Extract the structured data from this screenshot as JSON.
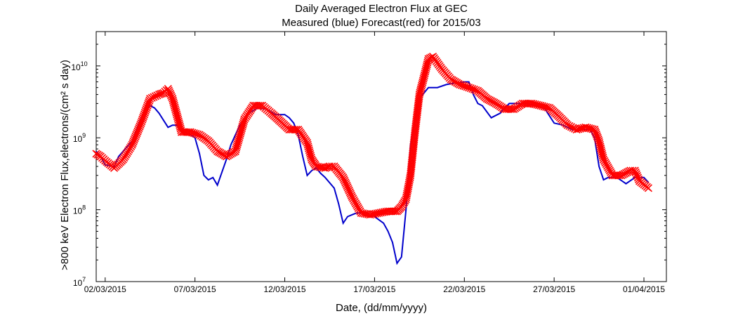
{
  "chart_data": {
    "type": "line",
    "title": "Daily Averaged Electron Flux at GEC",
    "subtitle": "Measured (blue) Forecast(red) for 2015/03",
    "xlabel": "Date, (dd/mm/yyyy)",
    "ylabel": ">800 keV Electron Flux,electrons/(cm² s day)",
    "y_scale": "log",
    "ylim": [
      10000000.0,
      30000000000.0
    ],
    "xlim": [
      "2015-03-01T12:00",
      "2015-04-02T06:00"
    ],
    "grid": false,
    "x_tick_labels": [
      "02/03/2015",
      "07/03/2015",
      "12/03/2015",
      "17/03/2015",
      "22/03/2015",
      "27/03/2015",
      "01/04/2015"
    ],
    "y_tick_labels": [
      {
        "base": "10",
        "exp": "7"
      },
      {
        "base": "10",
        "exp": "8"
      },
      {
        "base": "10",
        "exp": "9"
      },
      {
        "base": "10",
        "exp": "10"
      }
    ],
    "colors": {
      "measured": "#0000cc",
      "forecast": "#ff0000"
    },
    "series": [
      {
        "key": "measured",
        "style": "line",
        "points": [
          [
            "2015-03-01T12:00",
            650000000.0
          ],
          [
            "2015-03-01T18:00",
            550000000.0
          ],
          [
            "2015-03-02T00:00",
            420000000.0
          ],
          [
            "2015-03-02T12:00",
            400000000.0
          ],
          [
            "2015-03-02T18:00",
            550000000.0
          ],
          [
            "2015-03-03T00:00",
            650000000.0
          ],
          [
            "2015-03-03T12:00",
            900000000.0
          ],
          [
            "2015-03-03T18:00",
            1300000000.0
          ],
          [
            "2015-03-04T00:00",
            1900000000.0
          ],
          [
            "2015-03-04T12:00",
            2800000000.0
          ],
          [
            "2015-03-04T18:00",
            2600000000.0
          ],
          [
            "2015-03-05T00:00",
            2200000000.0
          ],
          [
            "2015-03-05T12:00",
            1400000000.0
          ],
          [
            "2015-03-05T18:00",
            1500000000.0
          ],
          [
            "2015-03-06T00:00",
            1500000000.0
          ],
          [
            "2015-03-06T06:00",
            1200000000.0
          ],
          [
            "2015-03-06T12:00",
            1200000000.0
          ],
          [
            "2015-03-06T18:00",
            1100000000.0
          ],
          [
            "2015-03-07T00:00",
            1000000000.0
          ],
          [
            "2015-03-07T06:00",
            600000000.0
          ],
          [
            "2015-03-07T12:00",
            300000000.0
          ],
          [
            "2015-03-07T18:00",
            260000000.0
          ],
          [
            "2015-03-08T00:00",
            280000000.0
          ],
          [
            "2015-03-08T06:00",
            220000000.0
          ],
          [
            "2015-03-08T18:00",
            500000000.0
          ],
          [
            "2015-03-09T00:00",
            800000000.0
          ],
          [
            "2015-03-09T12:00",
            1500000000.0
          ],
          [
            "2015-03-10T00:00",
            2200000000.0
          ],
          [
            "2015-03-10T12:00",
            2600000000.0
          ],
          [
            "2015-03-11T00:00",
            2500000000.0
          ],
          [
            "2015-03-11T12:00",
            2100000000.0
          ],
          [
            "2015-03-12T00:00",
            2100000000.0
          ],
          [
            "2015-03-12T06:00",
            1900000000.0
          ],
          [
            "2015-03-12T12:00",
            1600000000.0
          ],
          [
            "2015-03-12T18:00",
            1100000000.0
          ],
          [
            "2015-03-13T00:00",
            550000000.0
          ],
          [
            "2015-03-13T06:00",
            300000000.0
          ],
          [
            "2015-03-13T12:00",
            350000000.0
          ],
          [
            "2015-03-13T18:00",
            380000000.0
          ],
          [
            "2015-03-14T00:00",
            320000000.0
          ],
          [
            "2015-03-14T06:00",
            280000000.0
          ],
          [
            "2015-03-14T18:00",
            200000000.0
          ],
          [
            "2015-03-15T00:00",
            120000000.0
          ],
          [
            "2015-03-15T06:00",
            65000000.0
          ],
          [
            "2015-03-15T12:00",
            80000000.0
          ],
          [
            "2015-03-15T18:00",
            85000000.0
          ],
          [
            "2015-03-16T00:00",
            90000000.0
          ],
          [
            "2015-03-16T12:00",
            90000000.0
          ],
          [
            "2015-03-17T00:00",
            80000000.0
          ],
          [
            "2015-03-17T12:00",
            65000000.0
          ],
          [
            "2015-03-17T18:00",
            50000000.0
          ],
          [
            "2015-03-18T00:00",
            35000000.0
          ],
          [
            "2015-03-18T06:00",
            18000000.0
          ],
          [
            "2015-03-18T12:00",
            22000000.0
          ],
          [
            "2015-03-18T18:00",
            100000000.0
          ],
          [
            "2015-03-19T00:00",
            800000000.0
          ],
          [
            "2015-03-19T06:00",
            1800000000.0
          ],
          [
            "2015-03-19T12:00",
            3500000000.0
          ],
          [
            "2015-03-20T00:00",
            5000000000.0
          ],
          [
            "2015-03-20T12:00",
            5000000000.0
          ],
          [
            "2015-03-21T00:00",
            5500000000.0
          ],
          [
            "2015-03-21T12:00",
            5800000000.0
          ],
          [
            "2015-03-22T00:00",
            6000000000.0
          ],
          [
            "2015-03-22T06:00",
            6000000000.0
          ],
          [
            "2015-03-22T12:00",
            4000000000.0
          ],
          [
            "2015-03-22T18:00",
            3000000000.0
          ],
          [
            "2015-03-23T00:00",
            2800000000.0
          ],
          [
            "2015-03-23T12:00",
            1900000000.0
          ],
          [
            "2015-03-24T00:00",
            2200000000.0
          ],
          [
            "2015-03-24T12:00",
            3000000000.0
          ],
          [
            "2015-03-25T00:00",
            3000000000.0
          ],
          [
            "2015-03-25T12:00",
            3000000000.0
          ],
          [
            "2015-03-26T00:00",
            2800000000.0
          ],
          [
            "2015-03-26T12:00",
            2500000000.0
          ],
          [
            "2015-03-26T18:00",
            2000000000.0
          ],
          [
            "2015-03-27T00:00",
            1600000000.0
          ],
          [
            "2015-03-27T12:00",
            1500000000.0
          ],
          [
            "2015-03-28T00:00",
            1300000000.0
          ],
          [
            "2015-03-28T12:00",
            1300000000.0
          ],
          [
            "2015-03-29T00:00",
            1300000000.0
          ],
          [
            "2015-03-29T06:00",
            1000000000.0
          ],
          [
            "2015-03-29T12:00",
            400000000.0
          ],
          [
            "2015-03-29T18:00",
            260000000.0
          ],
          [
            "2015-03-30T00:00",
            280000000.0
          ],
          [
            "2015-03-30T12:00",
            280000000.0
          ],
          [
            "2015-03-31T00:00",
            230000000.0
          ],
          [
            "2015-03-31T12:00",
            280000000.0
          ],
          [
            "2015-04-01T00:00",
            280000000.0
          ],
          [
            "2015-04-01T06:00",
            240000000.0
          ]
        ]
      },
      {
        "key": "forecast",
        "style": "x-markers",
        "points": [
          [
            "2015-03-01T12:00",
            600000000.0
          ],
          [
            "2015-03-01T18:00",
            550000000.0
          ],
          [
            "2015-03-02T00:00",
            480000000.0
          ],
          [
            "2015-03-02T12:00",
            380000000.0
          ],
          [
            "2015-03-03T00:00",
            500000000.0
          ],
          [
            "2015-03-03T12:00",
            800000000.0
          ],
          [
            "2015-03-04T00:00",
            1600000000.0
          ],
          [
            "2015-03-04T12:00",
            3500000000.0
          ],
          [
            "2015-03-05T00:00",
            4000000000.0
          ],
          [
            "2015-03-05T06:00",
            4200000000.0
          ],
          [
            "2015-03-05T12:00",
            4800000000.0
          ],
          [
            "2015-03-05T18:00",
            3500000000.0
          ],
          [
            "2015-03-06T06:00",
            1200000000.0
          ],
          [
            "2015-03-06T18:00",
            1200000000.0
          ],
          [
            "2015-03-07T06:00",
            1100000000.0
          ],
          [
            "2015-03-07T18:00",
            900000000.0
          ],
          [
            "2015-03-08T06:00",
            650000000.0
          ],
          [
            "2015-03-08T18:00",
            550000000.0
          ],
          [
            "2015-03-09T06:00",
            650000000.0
          ],
          [
            "2015-03-09T18:00",
            1800000000.0
          ],
          [
            "2015-03-10T06:00",
            2800000000.0
          ],
          [
            "2015-03-10T18:00",
            2800000000.0
          ],
          [
            "2015-03-11T06:00",
            2200000000.0
          ],
          [
            "2015-03-11T18:00",
            1700000000.0
          ],
          [
            "2015-03-12T06:00",
            1300000000.0
          ],
          [
            "2015-03-12T18:00",
            1300000000.0
          ],
          [
            "2015-03-13T06:00",
            850000000.0
          ],
          [
            "2015-03-13T12:00",
            500000000.0
          ],
          [
            "2015-03-13T18:00",
            400000000.0
          ],
          [
            "2015-03-14T06:00",
            380000000.0
          ],
          [
            "2015-03-14T12:00",
            400000000.0
          ],
          [
            "2015-03-14T18:00",
            400000000.0
          ],
          [
            "2015-03-15T06:00",
            280000000.0
          ],
          [
            "2015-03-15T18:00",
            150000000.0
          ],
          [
            "2015-03-16T06:00",
            90000000.0
          ],
          [
            "2015-03-16T18:00",
            85000000.0
          ],
          [
            "2015-03-17T06:00",
            90000000.0
          ],
          [
            "2015-03-17T18:00",
            95000000.0
          ],
          [
            "2015-03-18T06:00",
            95000000.0
          ],
          [
            "2015-03-18T12:00",
            110000000.0
          ],
          [
            "2015-03-18T18:00",
            140000000.0
          ],
          [
            "2015-03-19T00:00",
            300000000.0
          ],
          [
            "2015-03-19T06:00",
            1200000000.0
          ],
          [
            "2015-03-19T12:00",
            4000000000.0
          ],
          [
            "2015-03-19T18:00",
            7000000000.0
          ],
          [
            "2015-03-20T00:00",
            12500000000.0
          ],
          [
            "2015-03-20T06:00",
            13500000000.0
          ],
          [
            "2015-03-20T12:00",
            11000000000.0
          ],
          [
            "2015-03-20T18:00",
            9000000000.0
          ],
          [
            "2015-03-21T06:00",
            6500000000.0
          ],
          [
            "2015-03-21T18:00",
            5500000000.0
          ],
          [
            "2015-03-22T06:00",
            5000000000.0
          ],
          [
            "2015-03-22T18:00",
            4500000000.0
          ],
          [
            "2015-03-23T06:00",
            3500000000.0
          ],
          [
            "2015-03-23T18:00",
            3000000000.0
          ],
          [
            "2015-03-24T06:00",
            2500000000.0
          ],
          [
            "2015-03-24T18:00",
            2500000000.0
          ],
          [
            "2015-03-25T06:00",
            3000000000.0
          ],
          [
            "2015-03-25T18:00",
            3000000000.0
          ],
          [
            "2015-03-26T06:00",
            2800000000.0
          ],
          [
            "2015-03-26T18:00",
            2600000000.0
          ],
          [
            "2015-03-27T06:00",
            2000000000.0
          ],
          [
            "2015-03-27T18:00",
            1500000000.0
          ],
          [
            "2015-03-28T06:00",
            1300000000.0
          ],
          [
            "2015-03-28T18:00",
            1400000000.0
          ],
          [
            "2015-03-29T06:00",
            1300000000.0
          ],
          [
            "2015-03-29T12:00",
            900000000.0
          ],
          [
            "2015-03-29T18:00",
            500000000.0
          ],
          [
            "2015-03-30T06:00",
            300000000.0
          ],
          [
            "2015-03-30T18:00",
            300000000.0
          ],
          [
            "2015-03-31T06:00",
            350000000.0
          ],
          [
            "2015-03-31T12:00",
            350000000.0
          ],
          [
            "2015-03-31T18:00",
            250000000.0
          ],
          [
            "2015-04-01T06:00",
            200000000.0
          ]
        ]
      }
    ]
  }
}
